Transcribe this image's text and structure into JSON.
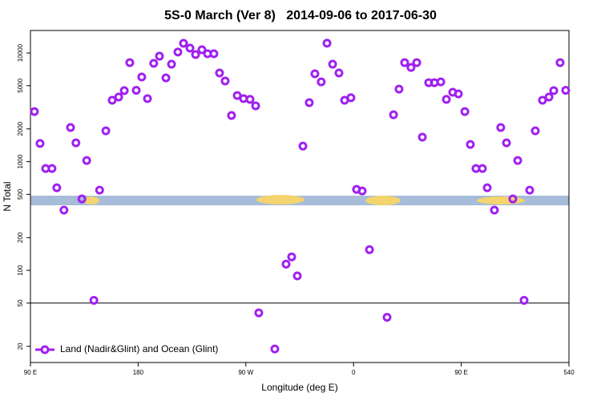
{
  "chart_data": {
    "type": "scatter",
    "title": "5S-0 March (Ver 8)   2014-09-06 to 2017-06-30",
    "x_label": "Longitude (deg E)",
    "y_label": "N Total",
    "ylog": true,
    "xlim": [
      90,
      540
    ],
    "ylim": [
      14.2,
      16100
    ],
    "xticks": [
      {
        "value": 90,
        "label": "90 E"
      },
      180,
      {
        "value": 270,
        "label": "90 W"
      },
      {
        "value": 360,
        "label": "0"
      },
      {
        "value": 450,
        "label": "90 E"
      },
      540
    ],
    "yticks": [
      20,
      50,
      100,
      200,
      500,
      1000,
      2000,
      5000,
      10000
    ],
    "hline": 50,
    "legend_position": "bottom-left",
    "series": [
      {
        "name": "Land (Nadir&Glint) and Ocean (Glint)",
        "color": "#a020f0",
        "x": [
          93.3,
          98,
          102.7,
          108,
          112,
          118,
          123.5,
          128,
          133,
          137,
          143,
          147.8,
          153,
          158.3,
          163.7,
          168.4,
          173,
          178.4,
          183,
          187.8,
          193,
          197.8,
          203.2,
          207.9,
          213.2,
          217.9,
          223.3,
          228,
          233.3,
          238,
          243.3,
          248,
          252.7,
          258,
          262.8,
          268.1,
          273.5,
          278.2,
          280.8,
          294.2,
          303.6,
          308.3,
          313,
          317.7,
          323,
          327.7,
          333,
          337.8,
          342.5,
          347.8,
          352.5,
          357.8,
          362.5,
          367.2,
          373.3,
          388,
          393.4,
          398,
          402.7,
          408,
          412.8,
          417.5,
          422.8,
          427.5,
          432.9,
          437.6,
          442.9,
          447.6,
          453,
          457.6,
          462.3,
          467.7,
          471.7,
          477.7,
          483,
          487.8,
          493.1,
          497.2,
          502.5,
          507.2,
          511.9,
          517.9,
          523.3,
          527.3,
          532.6,
          537.3
        ],
        "values": [
          2890,
          1470,
          865,
          865,
          575,
          358,
          2060,
          1490,
          454,
          1025,
          53,
          547,
          1920,
          3670,
          3930,
          4500,
          8150,
          4530,
          6010,
          3800,
          8020,
          9340,
          5900,
          7880,
          10200,
          12260,
          11080,
          9670,
          10700,
          9830,
          9830,
          6540,
          5520,
          2660,
          4060,
          3800,
          3740,
          3260,
          40.6,
          18.9,
          114,
          133,
          89,
          1390,
          3490,
          6430,
          5420,
          12300,
          7880,
          6540,
          3670,
          3870,
          556,
          537,
          155,
          37,
          2700,
          4650,
          8150,
          7360,
          8150,
          1680,
          5330,
          5330,
          5420,
          3740,
          4350,
          4200,
          2890,
          1440,
          865,
          865,
          575,
          358,
          2060,
          1490,
          454,
          1025,
          53,
          547,
          1920,
          3670,
          3930,
          4500,
          8150,
          4530
        ]
      }
    ]
  }
}
